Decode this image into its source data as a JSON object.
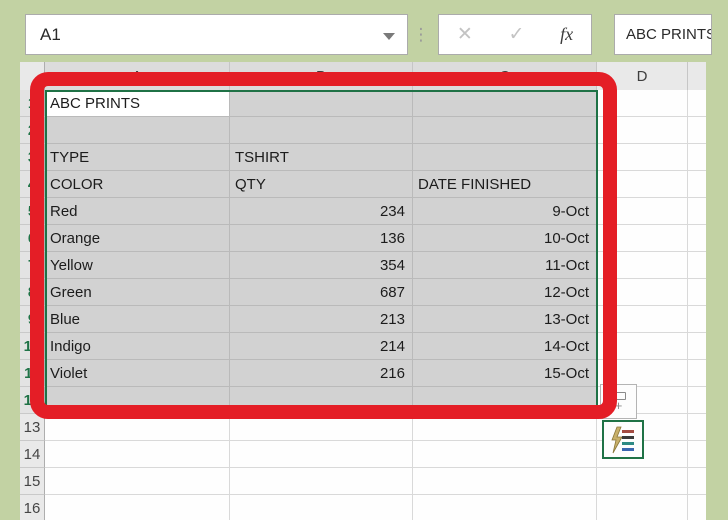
{
  "toolbar": {
    "name_box_value": "A1",
    "formula_value": "ABC PRINTS",
    "cancel_label": "✕",
    "enter_label": "✓",
    "function_label": "fx",
    "separator_dots": "⋮"
  },
  "sheet": {
    "column_headers": [
      "A",
      "B",
      "C",
      "D",
      ""
    ],
    "selection": {
      "range": "A1:C12",
      "active_cell": "A1"
    },
    "rows": [
      {
        "n": "1",
        "a": "ABC PRINTS",
        "b": "",
        "c": "",
        "d": ""
      },
      {
        "n": "2",
        "a": "",
        "b": "",
        "c": "",
        "d": ""
      },
      {
        "n": "3",
        "a": "TYPE",
        "b": "TSHIRT",
        "c": "",
        "d": ""
      },
      {
        "n": "4",
        "a": "COLOR",
        "b": "QTY",
        "c": "DATE FINISHED",
        "d": ""
      },
      {
        "n": "5",
        "a": "Red",
        "b": "234",
        "c": "9-Oct",
        "d": ""
      },
      {
        "n": "6",
        "a": "Orange",
        "b": "136",
        "c": "10-Oct",
        "d": ""
      },
      {
        "n": "7",
        "a": "Yellow",
        "b": "354",
        "c": "11-Oct",
        "d": ""
      },
      {
        "n": "8",
        "a": "Green",
        "b": "687",
        "c": "12-Oct",
        "d": ""
      },
      {
        "n": "9",
        "a": "Blue",
        "b": "213",
        "c": "13-Oct",
        "d": ""
      },
      {
        "n": "10",
        "a": "Indigo",
        "b": "214",
        "c": "14-Oct",
        "d": ""
      },
      {
        "n": "11",
        "a": "Violet",
        "b": "216",
        "c": "15-Oct",
        "d": ""
      },
      {
        "n": "12",
        "a": "",
        "b": "",
        "c": "",
        "d": ""
      },
      {
        "n": "13",
        "a": "",
        "b": "",
        "c": "",
        "d": ""
      },
      {
        "n": "14",
        "a": "",
        "b": "",
        "c": "",
        "d": ""
      },
      {
        "n": "15",
        "a": "",
        "b": "",
        "c": "",
        "d": ""
      },
      {
        "n": "16",
        "a": "",
        "b": "",
        "c": "",
        "d": ""
      }
    ]
  },
  "colors": {
    "background_green": "#c2d2a3",
    "selection_fill": "#d2d2d2",
    "selection_border_green": "#1f7246",
    "annotation_red": "#e41e26",
    "header_bg": "#e9e9e9"
  }
}
